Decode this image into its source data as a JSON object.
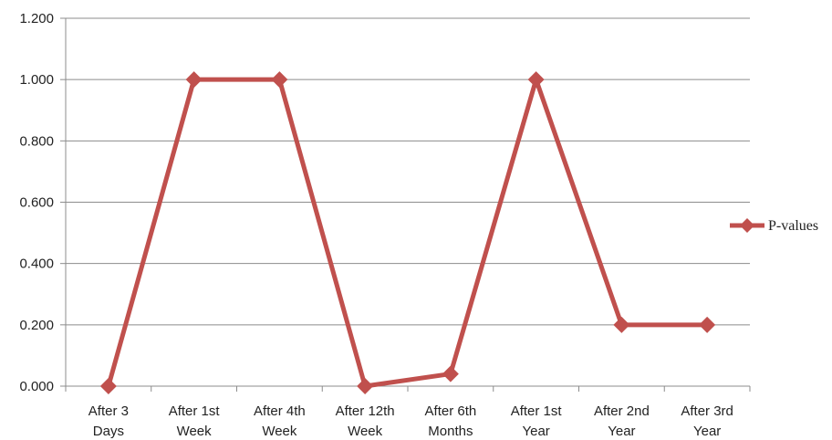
{
  "chart_data": {
    "type": "line",
    "categories": [
      [
        "After 3",
        "Days"
      ],
      [
        "After 1st",
        "Week"
      ],
      [
        "After 4th",
        "Week"
      ],
      [
        "After 12th",
        "Week"
      ],
      [
        "After 6th",
        "Months"
      ],
      [
        "After 1st",
        "Year"
      ],
      [
        "After 2nd",
        "Year"
      ],
      [
        "After 3rd",
        "Year"
      ]
    ],
    "series": [
      {
        "name": "P-values",
        "values": [
          0.0,
          1.0,
          1.0,
          0.0,
          0.04,
          1.0,
          0.2,
          0.2
        ],
        "color": "#c0504d"
      }
    ],
    "yticks": [
      "0.000",
      "0.200",
      "0.400",
      "0.600",
      "0.800",
      "1.000",
      "1.200"
    ],
    "ylim": [
      0,
      1.2
    ],
    "grid": true,
    "legend_position": "right"
  }
}
